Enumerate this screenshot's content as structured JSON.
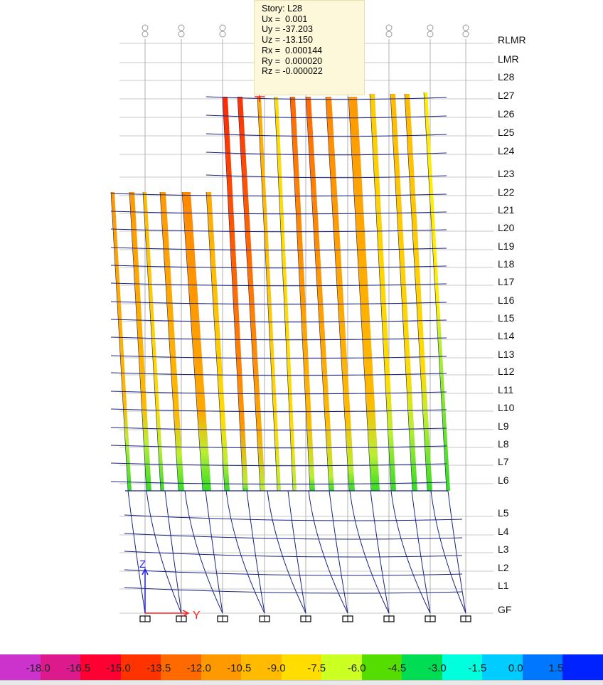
{
  "tooltip": {
    "story": "Story: L28",
    "ux": "Ux =  0.001",
    "uy": "Uy = -37.203",
    "uz": "Uz = -13.150",
    "rx": "Rx =  0.000144",
    "ry": "Ry =  0.000020",
    "rz": "Rz = -0.000022"
  },
  "stories": [
    "RLMR",
    "LMR",
    "L28",
    "L27",
    "L26",
    "L25",
    "L24",
    "L23",
    "L22",
    "L21",
    "L20",
    "L19",
    "L18",
    "L17",
    "L16",
    "L15",
    "L14",
    "L13",
    "L12",
    "L11",
    "L10",
    "L9",
    "L8",
    "L7",
    "L6",
    "L5",
    "L4",
    "L3",
    "L2",
    "L1",
    "GF"
  ],
  "axis": {
    "z": "Z",
    "y": "Y"
  },
  "legend": {
    "labels": [
      "-18.0",
      "-16.5",
      "-15.0",
      "-13.5",
      "-12.0",
      "-10.5",
      "-9.0",
      "-7.5",
      "-6.0",
      "-4.5",
      "-3.0",
      "-1.5",
      "0.0",
      "1.5"
    ],
    "colors": [
      "#cc33cc",
      "#dd1a8c",
      "#ff0033",
      "#ff3300",
      "#ff6a00",
      "#ff9900",
      "#ffbb00",
      "#ffdd00",
      "#ccff22",
      "#55dd00",
      "#00dd55",
      "#00ffdd",
      "#00ccff",
      "#0077ff",
      "#0022ff"
    ]
  },
  "colors": {
    "frame": "#1a237e",
    "grid": "#c8c8c8",
    "cursor": "#ff0000"
  }
}
